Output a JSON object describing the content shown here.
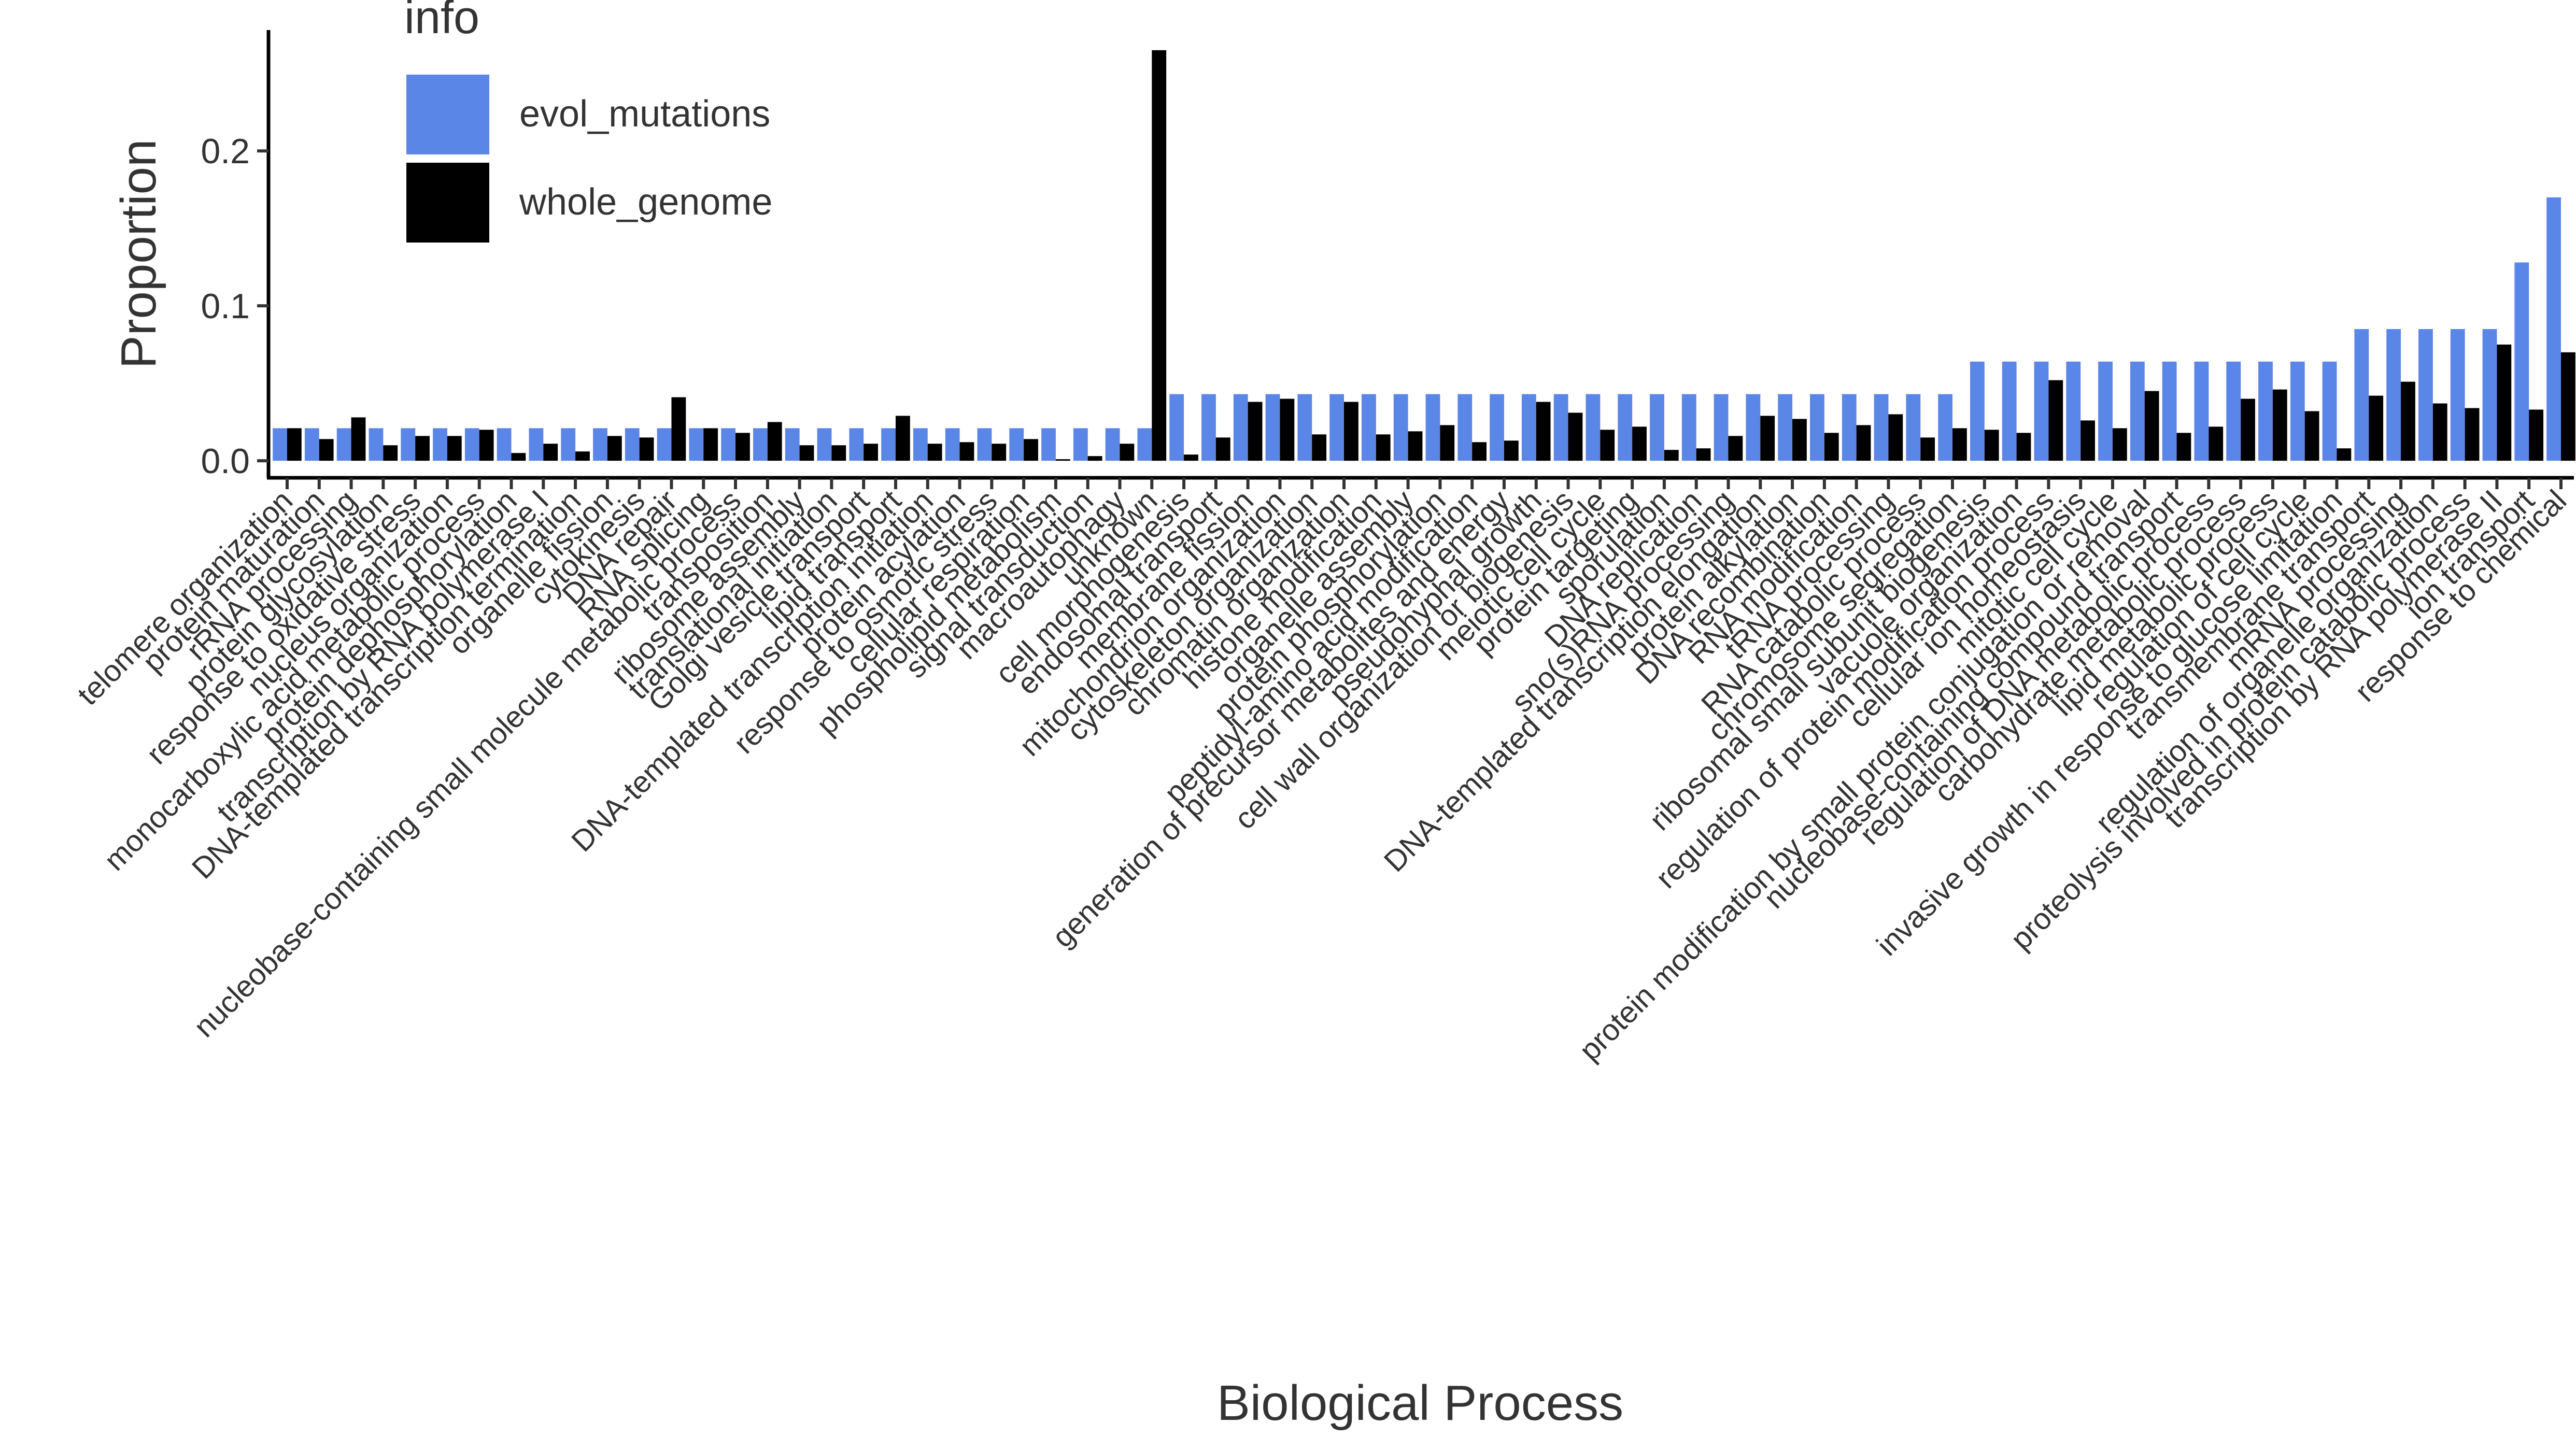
{
  "chart_data": {
    "type": "bar",
    "x_label": "Biological Process",
    "y_label": "Proportion",
    "legend_title": "info",
    "legend": "top-left",
    "categories": [
      "telomere organization",
      "protein maturation",
      "rRNA processing",
      "protein glycosylation",
      "response to oxidative stress",
      "nucleus organization",
      "monocarboxylic acid metabolic process",
      "protein dephosphorylation",
      "transcription by RNA polymerase I",
      "DNA-templated transcription termination",
      "organelle fission",
      "cytokinesis",
      "DNA repair",
      "RNA splicing",
      "nucleobase-containing small molecule metabolic process",
      "transposition",
      "ribosome assembly",
      "translational initiation",
      "Golgi vesicle transport",
      "lipid transport",
      "DNA-templated transcription initiation",
      "protein acylation",
      "response to osmotic stress",
      "cellular respiration",
      "phospholipid metabolism",
      "signal transduction",
      "macroautophagy",
      "unknown",
      "cell morphogenesis",
      "endosomal transport",
      "membrane fission",
      "mitochondrion organization",
      "cytoskeleton organization",
      "chromatin organization",
      "histone modification",
      "organelle assembly",
      "protein phosphorylation",
      "peptidyl-amino acid modification",
      "generation of precursor metabolites and energy",
      "pseudohyphal growth",
      "cell wall organization or biogenesis",
      "meiotic cell cycle",
      "protein targeting",
      "sporulation",
      "DNA replication",
      "sno(s)RNA processing",
      "DNA-templated transcription elongation",
      "protein alkylation",
      "DNA recombination",
      "RNA modification",
      "tRNA processing",
      "RNA catabolic process",
      "chromosome segregation",
      "ribosomal small subunit biogenesis",
      "vacuole organization",
      "regulation of protein modification process",
      "cellular ion homeostasis",
      "mitotic cell cycle",
      "protein modification by small protein conjugation or removal",
      "nucleobase-containing compound transport",
      "regulation of DNA metabolic process",
      "carbohydrate metabolic process",
      "lipid metabolic process",
      "regulation of cell cycle",
      "invasive growth in response to glucose limitation",
      "transmembrane transport",
      "mRNA processing",
      "regulation of organelle organization",
      "proteolysis involved in protein catabolic process",
      "transcription by RNA polymerase II",
      "ion transport",
      "response to chemical"
    ],
    "series": [
      {
        "name": "evol_mutations",
        "color": "#5a86e8",
        "values": [
          0.021,
          0.021,
          0.021,
          0.021,
          0.021,
          0.021,
          0.021,
          0.021,
          0.021,
          0.021,
          0.021,
          0.021,
          0.021,
          0.021,
          0.021,
          0.021,
          0.021,
          0.021,
          0.021,
          0.021,
          0.021,
          0.021,
          0.021,
          0.021,
          0.021,
          0.021,
          0.021,
          0.021,
          0.043,
          0.043,
          0.043,
          0.043,
          0.043,
          0.043,
          0.043,
          0.043,
          0.043,
          0.043,
          0.043,
          0.043,
          0.043,
          0.043,
          0.043,
          0.043,
          0.043,
          0.043,
          0.043,
          0.043,
          0.043,
          0.043,
          0.043,
          0.043,
          0.043,
          0.064,
          0.064,
          0.064,
          0.064,
          0.064,
          0.064,
          0.064,
          0.064,
          0.064,
          0.064,
          0.064,
          0.064,
          0.085,
          0.085,
          0.085,
          0.085,
          0.085,
          0.128,
          0.17
        ]
      },
      {
        "name": "whole_genome",
        "color": "#000000",
        "values": [
          0.021,
          0.014,
          0.028,
          0.01,
          0.016,
          0.016,
          0.02,
          0.005,
          0.011,
          0.006,
          0.016,
          0.015,
          0.041,
          0.021,
          0.018,
          0.025,
          0.01,
          0.01,
          0.011,
          0.029,
          0.011,
          0.012,
          0.011,
          0.014,
          0.001,
          0.003,
          0.011,
          0.265,
          0.004,
          0.015,
          0.038,
          0.04,
          0.017,
          0.038,
          0.017,
          0.019,
          0.023,
          0.012,
          0.013,
          0.038,
          0.031,
          0.02,
          0.022,
          0.007,
          0.008,
          0.016,
          0.029,
          0.027,
          0.018,
          0.023,
          0.03,
          0.015,
          0.021,
          0.02,
          0.018,
          0.052,
          0.026,
          0.021,
          0.045,
          0.018,
          0.022,
          0.04,
          0.046,
          0.032,
          0.008,
          0.042,
          0.051,
          0.037,
          0.034,
          0.075,
          0.033,
          0.07
        ]
      }
    ],
    "ylim": [
      -0.011,
      0.278
    ],
    "yticks": [
      {
        "value": 0,
        "label": "0.0"
      },
      0.1,
      0.2
    ],
    "grid": false
  }
}
